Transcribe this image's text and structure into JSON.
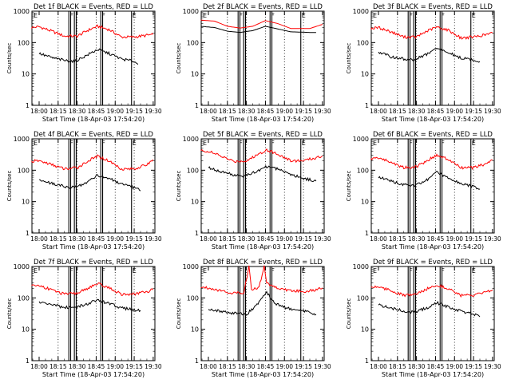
{
  "chart_data": [
    {
      "type": "line",
      "title": "Det 1f BLACK = Events, RED = LLD",
      "xlabel": "Start Time (18-Apr-03 17:54:20)",
      "ylabel": "Counts/sec",
      "xticks": [
        "18:00",
        "18:15",
        "18:30",
        "18:45",
        "19:00",
        "19:15",
        "19:30"
      ],
      "yticks": [
        "1",
        "10",
        "100",
        "1000"
      ],
      "ylim": [
        1,
        1000
      ],
      "yscale": "log",
      "flags": [
        "F",
        "F",
        "E"
      ],
      "profile": "wave",
      "series": [
        {
          "color": "#ff0000",
          "x": [
            "17:54",
            "18:00",
            "18:10",
            "18:20",
            "18:30",
            "18:38",
            "18:46",
            "18:55",
            "19:05",
            "19:15",
            "19:25",
            "19:30"
          ],
          "values": [
            300,
            320,
            230,
            160,
            160,
            240,
            330,
            260,
            150,
            150,
            170,
            180
          ]
        },
        {
          "color": "#000000",
          "x": [
            "18:00",
            "18:10",
            "18:20",
            "18:28",
            "18:38",
            "18:46",
            "18:55",
            "19:05",
            "19:15",
            "19:18"
          ],
          "values": [
            45,
            33,
            27,
            25,
            40,
            60,
            45,
            30,
            25,
            20
          ]
        }
      ]
    },
    {
      "type": "line",
      "title": "Det 2f BLACK = Events, RED = LLD",
      "xlabel": "Start Time (18-Apr-03 17:54:20)",
      "ylabel": "Counts/sec",
      "xticks": [
        "18:00",
        "18:15",
        "18:30",
        "18:45",
        "19:00",
        "19:15",
        "19:30"
      ],
      "yticks": [
        "1",
        "10",
        "100",
        "1000"
      ],
      "ylim": [
        1,
        1000
      ],
      "yscale": "log",
      "flags": [
        "F",
        "F",
        "E"
      ],
      "profile": "smooth",
      "series": [
        {
          "color": "#ff0000",
          "x": [
            "17:54",
            "18:05",
            "18:15",
            "18:25",
            "18:35",
            "18:45",
            "18:55",
            "19:05",
            "19:20",
            "19:30"
          ],
          "values": [
            520,
            480,
            330,
            290,
            330,
            500,
            400,
            280,
            280,
            380
          ]
        },
        {
          "color": "#000000",
          "x": [
            "17:54",
            "18:05",
            "18:15",
            "18:25",
            "18:35",
            "18:45",
            "18:55",
            "19:05",
            "19:20",
            "19:25"
          ],
          "values": [
            330,
            300,
            230,
            210,
            240,
            330,
            270,
            220,
            210,
            210
          ]
        }
      ]
    },
    {
      "type": "line",
      "title": "Det 3f BLACK = Events, RED = LLD",
      "xlabel": "Start Time (18-Apr-03 17:54:20)",
      "ylabel": "Counts/sec",
      "xticks": [
        "18:00",
        "18:15",
        "18:30",
        "18:45",
        "19:00",
        "19:15",
        "19:30"
      ],
      "yticks": [
        "1",
        "10",
        "100",
        "1000"
      ],
      "ylim": [
        1,
        1000
      ],
      "yscale": "log",
      "flags": [
        "F",
        "F",
        "E"
      ],
      "profile": "wave",
      "series": [
        {
          "color": "#ff0000",
          "x": [
            "17:54",
            "18:00",
            "18:10",
            "18:20",
            "18:30",
            "18:38",
            "18:46",
            "18:55",
            "19:05",
            "19:15",
            "19:25",
            "19:30"
          ],
          "values": [
            280,
            300,
            220,
            150,
            150,
            230,
            310,
            250,
            140,
            150,
            180,
            200
          ]
        },
        {
          "color": "#000000",
          "x": [
            "18:00",
            "18:10",
            "18:20",
            "18:28",
            "18:38",
            "18:46",
            "18:55",
            "19:05",
            "19:15",
            "19:20"
          ],
          "values": [
            50,
            35,
            30,
            28,
            42,
            65,
            48,
            32,
            28,
            25
          ]
        }
      ]
    },
    {
      "type": "line",
      "title": "Det 4f BLACK = Events, RED = LLD",
      "xlabel": "Start Time (18-Apr-03 17:54:20)",
      "ylabel": "Counts/sec",
      "xticks": [
        "18:00",
        "18:15",
        "18:30",
        "18:45",
        "19:00",
        "19:15",
        "19:30"
      ],
      "yticks": [
        "1",
        "10",
        "100",
        "1000"
      ],
      "ylim": [
        1,
        1000
      ],
      "yscale": "log",
      "flags": [
        "F",
        "F",
        "E"
      ],
      "profile": "wave",
      "series": [
        {
          "color": "#ff0000",
          "x": [
            "17:54",
            "18:00",
            "18:10",
            "18:20",
            "18:30",
            "18:38",
            "18:46",
            "18:55",
            "19:05",
            "19:15",
            "19:25",
            "19:30"
          ],
          "values": [
            190,
            200,
            150,
            110,
            120,
            190,
            280,
            200,
            110,
            110,
            150,
            220
          ]
        },
        {
          "color": "#000000",
          "x": [
            "18:00",
            "18:10",
            "18:20",
            "18:28",
            "18:38",
            "18:46",
            "18:55",
            "19:05",
            "19:15",
            "19:20"
          ],
          "values": [
            50,
            38,
            30,
            28,
            42,
            70,
            55,
            35,
            28,
            22
          ]
        }
      ]
    },
    {
      "type": "line",
      "title": "Det 5f BLACK = Events, RED = LLD",
      "xlabel": "Start Time (18-Apr-03 17:54:20)",
      "ylabel": "Counts/sec",
      "xticks": [
        "18:00",
        "18:15",
        "18:30",
        "18:45",
        "19:00",
        "19:15",
        "19:30"
      ],
      "yticks": [
        "1",
        "10",
        "100",
        "1000"
      ],
      "ylim": [
        1,
        1000
      ],
      "yscale": "log",
      "flags": [
        "F",
        "F",
        "E"
      ],
      "profile": "wave",
      "series": [
        {
          "color": "#ff0000",
          "x": [
            "17:54",
            "18:00",
            "18:10",
            "18:20",
            "18:30",
            "18:38",
            "18:46",
            "18:55",
            "19:05",
            "19:15",
            "19:25",
            "19:30"
          ],
          "values": [
            420,
            400,
            280,
            190,
            200,
            300,
            450,
            320,
            200,
            200,
            250,
            280
          ]
        },
        {
          "color": "#000000",
          "x": [
            "18:00",
            "18:10",
            "18:20",
            "18:28",
            "18:38",
            "18:46",
            "18:55",
            "19:05",
            "19:15",
            "19:25"
          ],
          "values": [
            120,
            90,
            70,
            65,
            90,
            130,
            110,
            75,
            55,
            45
          ]
        }
      ]
    },
    {
      "type": "line",
      "title": "Det 6f BLACK = Events, RED = LLD",
      "xlabel": "Start Time (18-Apr-03 17:54:20)",
      "ylabel": "Counts/sec",
      "xticks": [
        "18:00",
        "18:15",
        "18:30",
        "18:45",
        "19:00",
        "19:15",
        "19:30"
      ],
      "yticks": [
        "1",
        "10",
        "100",
        "1000"
      ],
      "ylim": [
        1,
        1000
      ],
      "yscale": "log",
      "flags": [
        "F",
        "F",
        "E"
      ],
      "profile": "wave",
      "series": [
        {
          "color": "#ff0000",
          "x": [
            "17:54",
            "18:00",
            "18:10",
            "18:20",
            "18:30",
            "18:38",
            "18:46",
            "18:55",
            "19:05",
            "19:15",
            "19:25",
            "19:30"
          ],
          "values": [
            230,
            250,
            180,
            120,
            130,
            200,
            300,
            220,
            120,
            120,
            160,
            210
          ]
        },
        {
          "color": "#000000",
          "x": [
            "18:00",
            "18:10",
            "18:20",
            "18:28",
            "18:38",
            "18:46",
            "18:55",
            "19:05",
            "19:15",
            "19:20"
          ],
          "values": [
            60,
            45,
            35,
            32,
            48,
            85,
            60,
            38,
            30,
            25
          ]
        }
      ]
    },
    {
      "type": "line",
      "title": "Det 7f BLACK = Events, RED = LLD",
      "xlabel": "Start Time (18-Apr-03 17:54:20)",
      "ylabel": "Counts/sec",
      "xticks": [
        "18:00",
        "18:15",
        "18:30",
        "18:45",
        "19:00",
        "19:15",
        "19:30"
      ],
      "yticks": [
        "1",
        "10",
        "100",
        "1000"
      ],
      "ylim": [
        1,
        1000
      ],
      "yscale": "log",
      "flags": [
        "F",
        "F",
        "E"
      ],
      "profile": "wave",
      "series": [
        {
          "color": "#ff0000",
          "x": [
            "17:54",
            "18:00",
            "18:10",
            "18:20",
            "18:30",
            "18:38",
            "18:46",
            "18:55",
            "19:05",
            "19:15",
            "19:25",
            "19:30"
          ],
          "values": [
            240,
            250,
            180,
            130,
            140,
            200,
            280,
            210,
            130,
            130,
            160,
            180
          ]
        },
        {
          "color": "#000000",
          "x": [
            "18:00",
            "18:10",
            "18:20",
            "18:28",
            "18:38",
            "18:46",
            "18:55",
            "19:05",
            "19:15",
            "19:20"
          ],
          "values": [
            75,
            60,
            50,
            48,
            65,
            85,
            65,
            48,
            42,
            40
          ]
        }
      ]
    },
    {
      "type": "line",
      "title": "Det 8f BLACK = Events, RED = LLD",
      "xlabel": "Start Time (18-Apr-03 17:54:20)",
      "ylabel": "Counts/sec",
      "xticks": [
        "18:00",
        "18:15",
        "18:30",
        "18:45",
        "19:00",
        "19:15",
        "19:30"
      ],
      "yticks": [
        "1",
        "10",
        "100",
        "1000"
      ],
      "ylim": [
        1,
        1000
      ],
      "yscale": "log",
      "flags": [
        "F",
        "F",
        "E"
      ],
      "profile": "spiky",
      "series": [
        {
          "color": "#ff0000",
          "x": [
            "17:54",
            "18:00",
            "18:10",
            "18:20",
            "18:28",
            "18:32",
            "18:34",
            "18:40",
            "18:44",
            "18:46",
            "18:50",
            "18:55",
            "19:05",
            "19:15",
            "19:25",
            "19:30"
          ],
          "values": [
            220,
            210,
            170,
            140,
            150,
            1000,
            180,
            220,
            1000,
            300,
            250,
            200,
            170,
            160,
            180,
            210
          ]
        },
        {
          "color": "#000000",
          "x": [
            "18:00",
            "18:10",
            "18:20",
            "18:30",
            "18:40",
            "18:46",
            "18:52",
            "19:00",
            "19:10",
            "19:20",
            "19:25"
          ],
          "values": [
            45,
            38,
            32,
            30,
            70,
            150,
            70,
            50,
            40,
            35,
            30
          ]
        }
      ]
    },
    {
      "type": "line",
      "title": "Det 9f BLACK = Events, RED = LLD",
      "xlabel": "Start Time (18-Apr-03 17:54:20)",
      "ylabel": "Counts/sec",
      "xticks": [
        "18:00",
        "18:15",
        "18:30",
        "18:45",
        "19:00",
        "19:15",
        "19:30"
      ],
      "yticks": [
        "1",
        "10",
        "100",
        "1000"
      ],
      "ylim": [
        1,
        1000
      ],
      "yscale": "log",
      "flags": [
        "F",
        "F",
        "E"
      ],
      "profile": "wave",
      "series": [
        {
          "color": "#ff0000",
          "x": [
            "17:54",
            "18:00",
            "18:10",
            "18:20",
            "18:30",
            "18:38",
            "18:46",
            "18:55",
            "19:05",
            "19:15",
            "19:25",
            "19:30"
          ],
          "values": [
            220,
            230,
            170,
            120,
            130,
            190,
            260,
            200,
            120,
            120,
            150,
            180
          ]
        },
        {
          "color": "#000000",
          "x": [
            "18:00",
            "18:10",
            "18:20",
            "18:28",
            "18:38",
            "18:46",
            "18:55",
            "19:05",
            "19:15",
            "19:20"
          ],
          "values": [
            60,
            48,
            38,
            35,
            48,
            70,
            52,
            38,
            30,
            25
          ]
        }
      ]
    }
  ]
}
